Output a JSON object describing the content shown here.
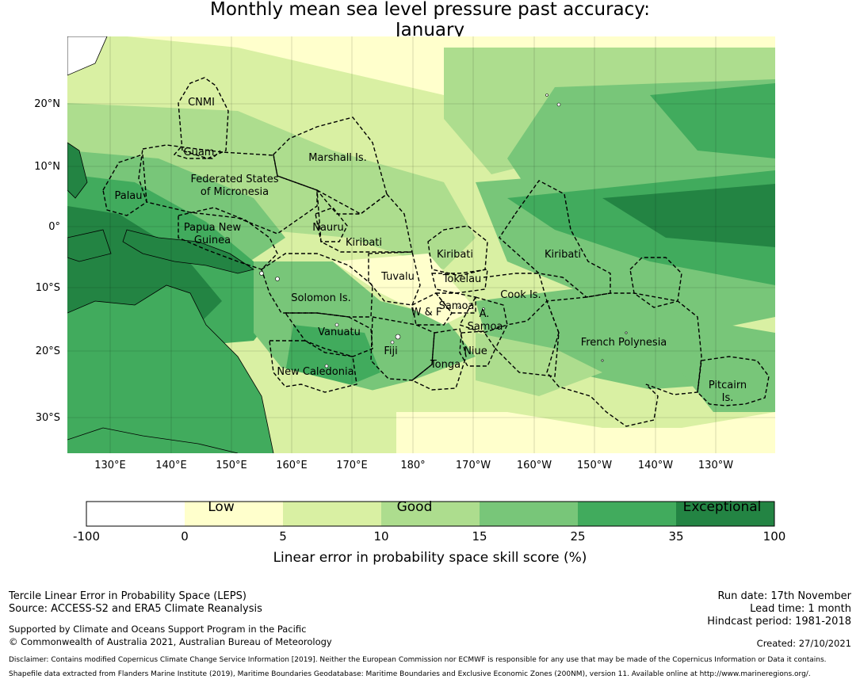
{
  "title": {
    "line1": "Monthly mean sea level pressure past accuracy:",
    "line2": "January"
  },
  "colors": {
    "c_neg": "#ffffff",
    "c0": "#ffffcc",
    "c5": "#d9f0a3",
    "c10": "#addd8e",
    "c15": "#78c679",
    "c25": "#41ab5d",
    "c35": "#238443",
    "land": "#ffffff",
    "eez_line": "#000000"
  },
  "axes": {
    "lat_labels": [
      "20°N",
      "10°N",
      "0°",
      "10°S",
      "20°S",
      "30°S"
    ],
    "lon_labels": [
      "130°E",
      "140°E",
      "150°E",
      "160°E",
      "170°E",
      "180°",
      "170°W",
      "160°W",
      "150°W",
      "140°W",
      "130°W"
    ]
  },
  "regions": [
    "CNMI",
    "Guam",
    "Marshall Is.",
    "Federated States",
    "of Micronesia",
    "Palau",
    "Papua New",
    "Guinea",
    "Nauru",
    "Kiribati",
    "Kiribati",
    "Kiribati",
    "Tuvalu",
    "Tokelau",
    "Solomon Is.",
    "Samoa",
    "W & F",
    "A.",
    "Samoa",
    "Cook Is.",
    "Vanuatu",
    "Fiji",
    "Niue",
    "French Polynesia",
    "Tonga",
    "New Caledonia",
    "Pitcairn",
    "Is."
  ],
  "colorbar": {
    "ticks": [
      "-100",
      "0",
      "5",
      "10",
      "15",
      "25",
      "35",
      "100"
    ],
    "categories": [
      "Low",
      "Good",
      "Exceptional"
    ],
    "label": "Linear error in probability space skill score (%)"
  },
  "footer": {
    "left1": "Tercile Linear Error in Probability Space (LEPS)",
    "left2": "Source: ACCESS-S2 and ERA5 Climate Reanalysis",
    "left3": "Supported by Climate and Oceans Support Program in the Pacific",
    "left4": "© Commonwealth of Australia 2021, Australian Bureau of Meteorology",
    "right1": "Run date: 17th November",
    "right2": "Lead time: 1 month",
    "right3": "Hindcast period: 1981-2018",
    "right4": "Created: 27/10/2021",
    "disclaimer1": "Disclaimer: Contains modified Copernicus Climate Change Service Information [2019]. Neither the European Commission nor ECMWF is responsible for any use that may be made of the Copernicus Information or Data it contains.",
    "disclaimer2": "Shapefile data extracted from Flanders Marine Institute (2019), Maritime Boundaries Geodatabase: Maritime Boundaries and Exclusive Economic Zones (200NM), version 11. Available online at http://www.marineregions.org/."
  }
}
